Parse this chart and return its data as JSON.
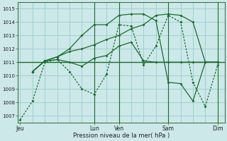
{
  "bg_color": "#cce8e8",
  "grid_color": "#99cccc",
  "line_color": "#1a6b2e",
  "xlabel": "Pression niveau de la mer( hPa )",
  "ylim": [
    1006.5,
    1015.5
  ],
  "yticks": [
    1007,
    1008,
    1009,
    1010,
    1011,
    1012,
    1013,
    1014,
    1015
  ],
  "xlim": [
    -0.1,
    8.3
  ],
  "xtick_positions": [
    0,
    3,
    4,
    6,
    8
  ],
  "xtick_labels": [
    "Jeu",
    "Lun",
    "Ven",
    "Sam",
    "Dim"
  ],
  "vlines": [
    3,
    4,
    6,
    8
  ],
  "hline_y": 1011,
  "series1_solid": {
    "x": [
      0,
      0.5,
      1.0,
      1.5,
      2.0,
      2.5,
      3.0,
      3.5,
      4.0,
      4.5,
      5.0,
      5.5,
      6.0,
      6.5,
      7.0,
      7.5,
      8.0
    ],
    "y": [
      1006.7,
      1008.1,
      1011.0,
      1011.2,
      1010.3,
      1009.0,
      1008.6,
      1010.1,
      1013.8,
      1013.7,
      1010.8,
      1012.2,
      1014.5,
      1014.0,
      1009.5,
      1007.7,
      1010.8
    ],
    "style": "dotted"
  },
  "series2_solid": {
    "x": [
      0.5,
      1.0,
      1.5,
      2.0,
      2.5,
      3.0,
      3.5,
      4.0,
      4.5,
      5.0,
      5.5,
      6.0,
      6.5,
      7.0,
      7.5,
      8.0
    ],
    "y": [
      1010.3,
      1011.1,
      1011.4,
      1011.8,
      1012.0,
      1012.3,
      1012.7,
      1013.0,
      1013.5,
      1013.8,
      1014.5,
      1014.6,
      1014.5,
      1014.0,
      1011.0,
      1011.0
    ],
    "style": "solid"
  },
  "series3_solid": {
    "x": [
      0.5,
      1.0,
      1.5,
      2.0,
      2.5,
      3.0,
      3.5,
      4.0,
      4.5,
      5.0,
      5.5,
      6.0,
      6.5,
      7.0,
      7.5,
      8.0
    ],
    "y": [
      1010.3,
      1011.1,
      1011.4,
      1012.0,
      1013.0,
      1013.8,
      1013.8,
      1014.5,
      1014.6,
      1014.6,
      1014.1,
      1009.5,
      1009.4,
      1008.1,
      1011.0,
      1011.0
    ],
    "style": "solid"
  },
  "series4_solid": {
    "x": [
      0.5,
      1.0,
      1.5,
      2.0,
      2.5,
      3.0,
      3.5,
      4.0,
      4.5,
      5.0,
      5.5,
      6.0,
      6.5,
      7.0,
      7.5,
      8.0
    ],
    "y": [
      1010.3,
      1011.1,
      1011.2,
      1011.0,
      1010.7,
      1011.3,
      1011.5,
      1012.2,
      1012.5,
      1011.1,
      1011.0,
      1011.0,
      1011.0,
      1011.0,
      1011.0,
      1011.0
    ],
    "style": "solid"
  }
}
